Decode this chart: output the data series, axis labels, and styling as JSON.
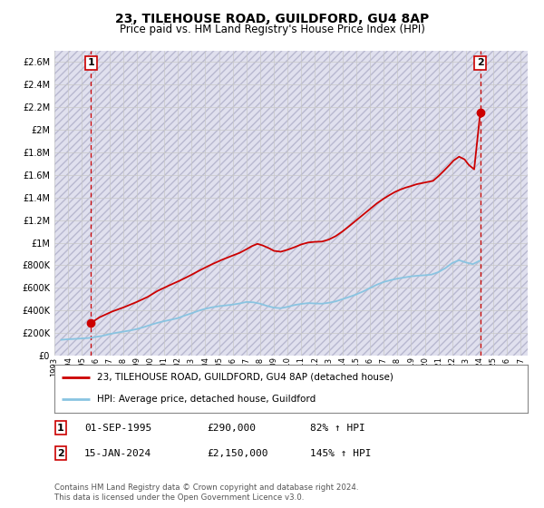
{
  "title": "23, TILEHOUSE ROAD, GUILDFORD, GU4 8AP",
  "subtitle": "Price paid vs. HM Land Registry's House Price Index (HPI)",
  "title_fontsize": 10,
  "subtitle_fontsize": 8.5,
  "ylim": [
    0,
    2700000
  ],
  "yticks": [
    0,
    200000,
    400000,
    600000,
    800000,
    1000000,
    1200000,
    1400000,
    1600000,
    1800000,
    2000000,
    2200000,
    2400000,
    2600000
  ],
  "ytick_labels": [
    "£0",
    "£200K",
    "£400K",
    "£600K",
    "£800K",
    "£1M",
    "£1.2M",
    "£1.4M",
    "£1.6M",
    "£1.8M",
    "£2M",
    "£2.2M",
    "£2.4M",
    "£2.6M"
  ],
  "xlim_start": 1993.0,
  "xlim_end": 2027.5,
  "xticks": [
    1993,
    1994,
    1995,
    1996,
    1997,
    1998,
    1999,
    2000,
    2001,
    2002,
    2003,
    2004,
    2005,
    2006,
    2007,
    2008,
    2009,
    2010,
    2011,
    2012,
    2013,
    2014,
    2015,
    2016,
    2017,
    2018,
    2019,
    2020,
    2021,
    2022,
    2023,
    2024,
    2025,
    2026,
    2027
  ],
  "hpi_line_color": "#89c4e1",
  "price_line_color": "#cc0000",
  "marker_color": "#cc0000",
  "dashed_line_color": "#cc0000",
  "bg_color": "#ffffff",
  "grid_color": "#c8c8c8",
  "sale1_x": 1995.67,
  "sale1_y": 290000,
  "sale1_label": "1",
  "sale2_x": 2024.04,
  "sale2_y": 2150000,
  "sale2_label": "2",
  "legend_entries": [
    "23, TILEHOUSE ROAD, GUILDFORD, GU4 8AP (detached house)",
    "HPI: Average price, detached house, Guildford"
  ],
  "footnote": "Contains HM Land Registry data © Crown copyright and database right 2024.\nThis data is licensed under the Open Government Licence v3.0.",
  "hpi_data_x": [
    1993.5,
    1994,
    1994.5,
    1995,
    1995.5,
    1996,
    1996.5,
    1997,
    1997.5,
    1998,
    1998.5,
    1999,
    1999.5,
    2000,
    2000.5,
    2001,
    2001.5,
    2002,
    2002.5,
    2003,
    2003.5,
    2004,
    2004.5,
    2005,
    2005.5,
    2006,
    2006.5,
    2007,
    2007.5,
    2008,
    2008.5,
    2009,
    2009.5,
    2010,
    2010.5,
    2011,
    2011.5,
    2012,
    2012.5,
    2013,
    2013.5,
    2014,
    2014.5,
    2015,
    2015.5,
    2016,
    2016.5,
    2017,
    2017.5,
    2018,
    2018.5,
    2019,
    2019.5,
    2020,
    2020.5,
    2021,
    2021.5,
    2022,
    2022.5,
    2023,
    2023.5,
    2024
  ],
  "hpi_data_y": [
    140000,
    145000,
    148000,
    152000,
    156000,
    165000,
    175000,
    190000,
    202000,
    212000,
    222000,
    235000,
    252000,
    272000,
    290000,
    305000,
    318000,
    332000,
    355000,
    375000,
    397000,
    415000,
    428000,
    438000,
    445000,
    452000,
    462000,
    475000,
    472000,
    460000,
    440000,
    425000,
    420000,
    432000,
    448000,
    458000,
    465000,
    462000,
    460000,
    468000,
    480000,
    500000,
    520000,
    542000,
    568000,
    598000,
    628000,
    652000,
    668000,
    682000,
    692000,
    702000,
    708000,
    712000,
    718000,
    740000,
    775000,
    820000,
    845000,
    825000,
    810000,
    840000
  ],
  "price_data_x": [
    1995.67,
    1996.3,
    1997.2,
    1998.1,
    1999.0,
    1999.8,
    2000.5,
    2001.3,
    2002.1,
    2002.9,
    2003.7,
    2004.5,
    2005.2,
    2005.9,
    2006.5,
    2007.0,
    2007.4,
    2007.8,
    2008.2,
    2008.7,
    2009.0,
    2009.5,
    2010.0,
    2010.5,
    2011.0,
    2011.5,
    2012.0,
    2012.5,
    2013.0,
    2013.5,
    2014.0,
    2014.5,
    2015.0,
    2015.5,
    2016.0,
    2016.5,
    2017.0,
    2017.4,
    2017.8,
    2018.2,
    2018.6,
    2019.0,
    2019.4,
    2019.8,
    2020.2,
    2020.6,
    2021.0,
    2021.4,
    2021.8,
    2022.1,
    2022.5,
    2022.9,
    2023.2,
    2023.6,
    2024.04
  ],
  "price_data_y": [
    290000,
    340000,
    390000,
    430000,
    475000,
    520000,
    572000,
    618000,
    662000,
    710000,
    762000,
    810000,
    848000,
    882000,
    910000,
    942000,
    970000,
    990000,
    975000,
    948000,
    928000,
    920000,
    938000,
    960000,
    985000,
    1002000,
    1008000,
    1010000,
    1028000,
    1058000,
    1100000,
    1148000,
    1198000,
    1248000,
    1298000,
    1348000,
    1390000,
    1420000,
    1448000,
    1470000,
    1488000,
    1502000,
    1518000,
    1528000,
    1538000,
    1548000,
    1590000,
    1638000,
    1688000,
    1728000,
    1762000,
    1738000,
    1690000,
    1650000,
    2150000
  ]
}
